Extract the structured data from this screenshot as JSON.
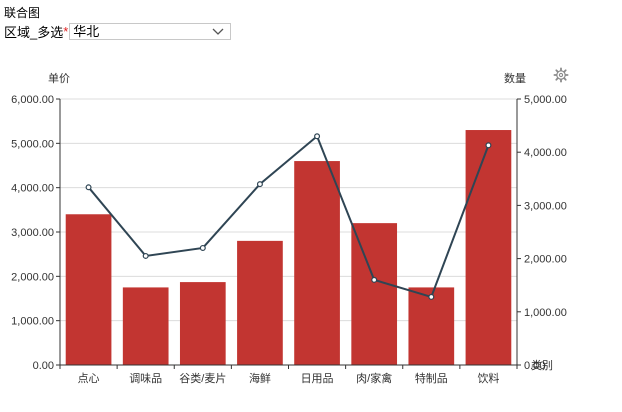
{
  "page": {
    "title": "联合图"
  },
  "filter": {
    "label": "区域_多选",
    "required_mark": "*",
    "selected": "华北"
  },
  "colors": {
    "bar": "#c23531",
    "line": "#2f4554",
    "grid": "#dcdcdc",
    "axis": "#333333"
  },
  "icons": {
    "dropdown": "chevron-down-icon",
    "settings": "gear-icon"
  },
  "chart_data": {
    "type": "bar",
    "categories": [
      "点心",
      "调味品",
      "谷类/麦片",
      "海鲜",
      "日用品",
      "肉/家禽",
      "特制品",
      "饮料"
    ],
    "series": [
      {
        "name": "单价",
        "type": "bar",
        "axis": "left",
        "values": [
          3400,
          1750,
          1870,
          2800,
          4600,
          3200,
          1750,
          5300
        ]
      },
      {
        "name": "数量",
        "type": "line",
        "axis": "right",
        "values": [
          3340,
          2050,
          2200,
          3400,
          4300,
          1600,
          1280,
          4130
        ]
      }
    ],
    "xlabel": "类别",
    "ylabel_left": "单价",
    "ylabel_right": "数量",
    "ylim_left": [
      0,
      6000
    ],
    "ylim_right": [
      0,
      5000
    ],
    "yticks_left": [
      "0.00",
      "1,000.00",
      "2,000.00",
      "3,000.00",
      "4,000.00",
      "5,000.00",
      "6,000.00"
    ],
    "yticks_right": [
      "0.00",
      "1,000.00",
      "2,000.00",
      "3,000.00",
      "4,000.00",
      "5,000.00"
    ],
    "grid": true,
    "legend": "none"
  }
}
